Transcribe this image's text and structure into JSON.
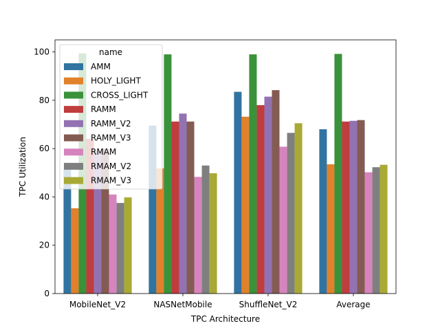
{
  "chart_data": {
    "type": "bar",
    "title": "",
    "xlabel": "TPC Architecture",
    "ylabel": "TPC Utilization",
    "ylim": [
      0,
      105
    ],
    "yticks": [
      0,
      20,
      40,
      60,
      80,
      100
    ],
    "grid": false,
    "categories": [
      "MobileNet_V2",
      "NASNetMobile",
      "ShuffleNet_V2",
      "Average"
    ],
    "legend": {
      "title": "name",
      "placement": "upper-left"
    },
    "series": [
      {
        "name": "AMM",
        "color": "#3274a1",
        "values": [
          51.5,
          69.5,
          83.5,
          68.0
        ]
      },
      {
        "name": "HOLY_LIGHT",
        "color": "#e1812c",
        "values": [
          35.3,
          51.8,
          73.2,
          53.5
        ]
      },
      {
        "name": "CROSS_LIGHT",
        "color": "#3a923a",
        "values": [
          99.4,
          99.0,
          99.0,
          99.2
        ]
      },
      {
        "name": "RAMM",
        "color": "#c03d3e",
        "values": [
          64.0,
          71.2,
          78.0,
          71.2
        ]
      },
      {
        "name": "RAMM_V2",
        "color": "#9372b2",
        "values": [
          59.0,
          74.5,
          81.5,
          71.5
        ]
      },
      {
        "name": "RAMM_V3",
        "color": "#845b53",
        "values": [
          60.0,
          71.2,
          84.2,
          71.8
        ]
      },
      {
        "name": "RMAM",
        "color": "#d684bd",
        "values": [
          41.0,
          48.3,
          60.8,
          50.2
        ]
      },
      {
        "name": "RMAM_V2",
        "color": "#7f7f7f",
        "values": [
          37.5,
          53.0,
          66.5,
          52.3
        ]
      },
      {
        "name": "RMAM_V3",
        "color": "#a9aa35",
        "values": [
          39.8,
          49.8,
          70.5,
          53.3
        ]
      }
    ]
  }
}
